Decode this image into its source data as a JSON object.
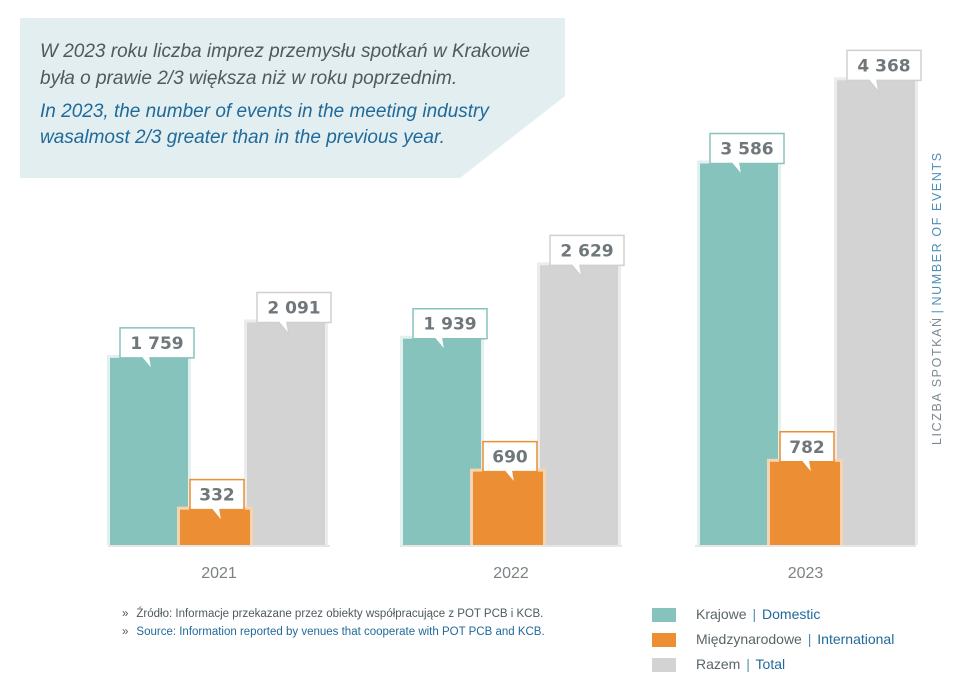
{
  "callout": {
    "pl_line1": "W 2023 roku liczba imprez przemysłu spotkań w Krakowie",
    "pl_line2": "była o prawie 2/3 większa niż w roku poprzednim.",
    "en_line1": "In 2023,  the number of events in the meeting industry",
    "en_line2": "wasalmost 2/3 greater than in the previous year."
  },
  "axis_label": {
    "pl": "LICZBA SPOTKAŃ",
    "sep": "|",
    "en": "NUMBER OF EVENTS"
  },
  "source": {
    "marker": "»",
    "pl": "Źródło: Informacje przekazane przez obiekty współpracujące z POT PCB i KCB.",
    "en": "Source: Information reported by venues that cooperate with POT PCB and KCB."
  },
  "legend": [
    {
      "pl": "Krajowe",
      "sep": "|",
      "en": "Domestic",
      "color": "#87c3bd"
    },
    {
      "pl": "Międzynarodowe",
      "sep": "|",
      "en": "International",
      "color": "#ec8e33"
    },
    {
      "pl": "Razem",
      "sep": "|",
      "en": "Total",
      "color": "#d3d3d3"
    }
  ],
  "chart_data": {
    "type": "bar",
    "title": "LICZBA SPOTKAŃ | NUMBER OF EVENTS",
    "categories": [
      "2021",
      "2022",
      "2023"
    ],
    "series": [
      {
        "name": "Krajowe | Domestic",
        "values": [
          1759,
          1939,
          3586
        ],
        "labels": [
          "1 759",
          "1 939",
          "3 586"
        ],
        "color": "#87c3bd",
        "border": "#e2f0ee",
        "label_border": "#87c3bd"
      },
      {
        "name": "Międzynarodowe | International",
        "values": [
          332,
          690,
          782
        ],
        "labels": [
          "332",
          "690",
          "782"
        ],
        "color": "#ec8e33",
        "border": "#f7d4b1",
        "label_border": "#ec8e33"
      },
      {
        "name": "Razem | Total",
        "values": [
          2091,
          2629,
          4368
        ],
        "labels": [
          "2 091",
          "2 629",
          "4 368"
        ],
        "color": "#d3d3d3",
        "border": "#ececec",
        "label_border": "#d0d0d0"
      }
    ],
    "ylim": [
      0,
      4700
    ],
    "xlabel": "",
    "ylabel": "LICZBA SPOTKAŃ | NUMBER OF EVENTS",
    "grid": false,
    "legend_position": "bottom-right"
  }
}
